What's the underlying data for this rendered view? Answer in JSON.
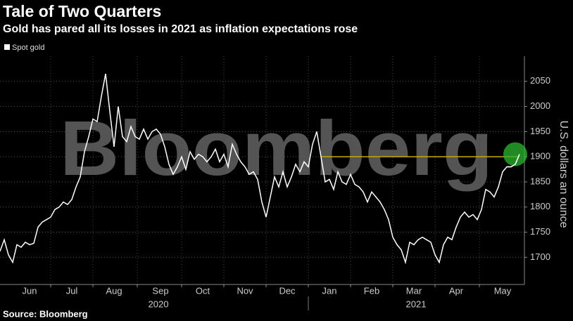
{
  "chart_data": {
    "type": "line",
    "title": "Tale of Two Quarters",
    "subtitle": "Gold has pared all its losses in 2021 as inflation expectations rose",
    "watermark": "Bloomberg",
    "source": "Source: Bloomberg",
    "y_label": "U.S. dollars an ounce",
    "categories": [
      null,
      null,
      null,
      null,
      null,
      null,
      null,
      "Jun",
      null,
      null,
      null,
      null,
      null,
      null,
      null,
      null,
      null,
      "Jul",
      null,
      null,
      null,
      null,
      null,
      null,
      null,
      null,
      null,
      "Aug",
      null,
      null,
      null,
      null,
      null,
      null,
      null,
      null,
      null,
      null,
      "Sep",
      null,
      null,
      null,
      null,
      null,
      null,
      null,
      null,
      null,
      "Oct",
      null,
      null,
      null,
      null,
      null,
      null,
      null,
      null,
      null,
      "Nov",
      null,
      null,
      null,
      null,
      null,
      null,
      null,
      null,
      null,
      "Dec",
      null,
      null,
      null,
      null,
      null,
      null,
      null,
      null,
      null,
      "Jan",
      null,
      null,
      null,
      null,
      null,
      null,
      null,
      null,
      null,
      "Feb",
      null,
      null,
      null,
      null,
      null,
      null,
      null,
      null,
      null,
      "Mar",
      null,
      null,
      null,
      null,
      null,
      null,
      null,
      null,
      null,
      "Apr",
      null,
      null,
      null,
      null,
      null,
      null,
      null,
      null,
      null,
      null,
      "May",
      null,
      null,
      null,
      null
    ],
    "x_groups": [
      {
        "label": "2020"
      },
      {
        "label": "2021"
      }
    ],
    "series": [
      {
        "name": "Spot gold",
        "color": "#ffffff",
        "values": [
          1712,
          1735,
          1705,
          1690,
          1725,
          1720,
          1730,
          1725,
          1728,
          1760,
          1770,
          1775,
          1780,
          1795,
          1800,
          1810,
          1805,
          1815,
          1840,
          1860,
          1910,
          1940,
          1975,
          1970,
          2020,
          2065,
          1990,
          1920,
          2000,
          1940,
          1930,
          1960,
          1940,
          1935,
          1955,
          1935,
          1950,
          1955,
          1945,
          1920,
          1885,
          1865,
          1880,
          1900,
          1875,
          1910,
          1895,
          1905,
          1900,
          1890,
          1900,
          1915,
          1890,
          1905,
          1880,
          1925,
          1905,
          1890,
          1880,
          1865,
          1870,
          1855,
          1810,
          1780,
          1820,
          1860,
          1840,
          1870,
          1840,
          1860,
          1885,
          1870,
          1890,
          1880,
          1925,
          1950,
          1900,
          1850,
          1855,
          1835,
          1870,
          1850,
          1845,
          1865,
          1845,
          1840,
          1830,
          1810,
          1830,
          1820,
          1810,
          1795,
          1775,
          1740,
          1725,
          1715,
          1690,
          1730,
          1725,
          1735,
          1740,
          1735,
          1730,
          1705,
          1690,
          1725,
          1740,
          1735,
          1760,
          1780,
          1790,
          1780,
          1785,
          1775,
          1795,
          1835,
          1830,
          1820,
          1840,
          1870,
          1880,
          1880,
          1885,
          1905
        ]
      }
    ],
    "reference_line": {
      "value": 1900,
      "color": "#c9a800"
    },
    "highlight_color": "#2db82d",
    "ylim": [
      1646,
      2100
    ],
    "yticks": [
      1700,
      1750,
      1800,
      1850,
      1900,
      1950,
      2000,
      2050
    ],
    "grid": true
  }
}
